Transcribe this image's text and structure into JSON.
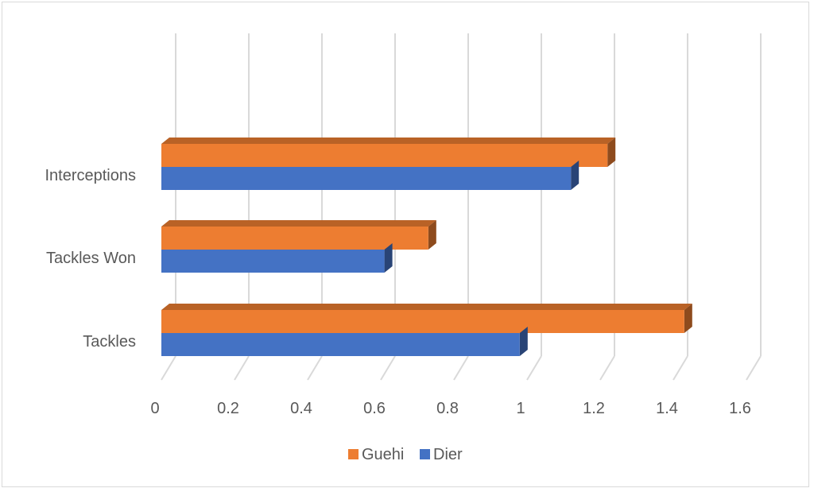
{
  "chart_data": {
    "type": "bar",
    "orientation": "horizontal",
    "style": "3d",
    "categories": [
      "Tackles",
      "Tackles Won",
      "Interceptions"
    ],
    "series": [
      {
        "name": "Dier",
        "color": "#4472C4",
        "values": [
          0.98,
          0.61,
          1.12
        ]
      },
      {
        "name": "Guehi",
        "color": "#ED7D31",
        "values": [
          1.43,
          0.73,
          1.22
        ]
      }
    ],
    "xlim": [
      0,
      1.6
    ],
    "xticks": [
      "0",
      "0.2",
      "0.4",
      "0.6",
      "0.8",
      "1",
      "1.2",
      "1.4",
      "1.6"
    ],
    "grid": true,
    "legend": "bottom",
    "legend_order": [
      "Guehi",
      "Dier"
    ]
  }
}
